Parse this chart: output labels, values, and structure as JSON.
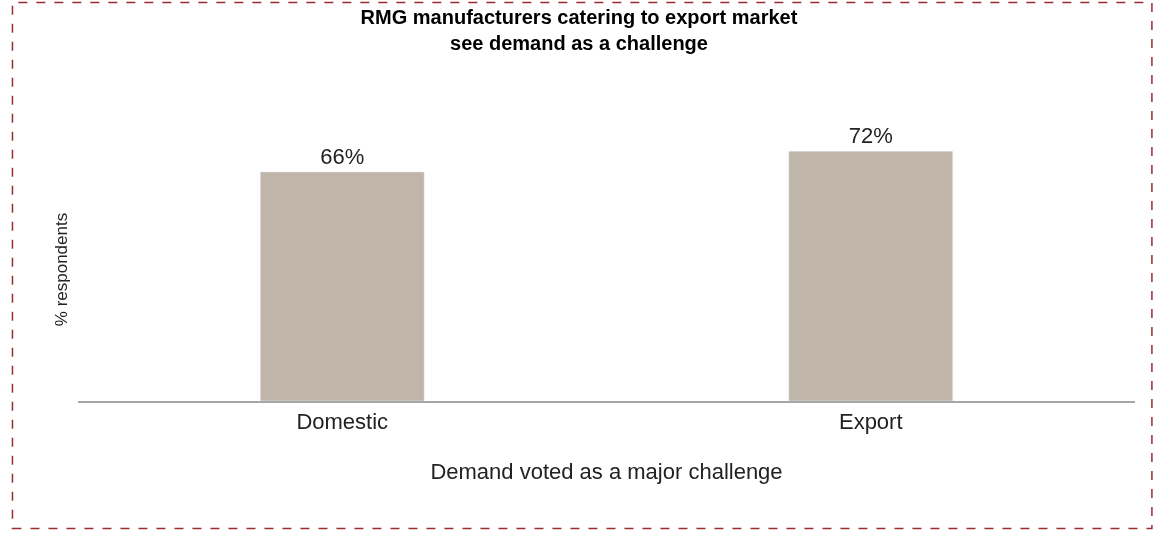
{
  "chart_data": {
    "type": "bar",
    "title": "RMG manufacturers catering to export market\nsee demand as a challenge",
    "xlabel": "Demand voted as a major challenge",
    "ylabel": "% respondents",
    "categories": [
      "Domestic",
      "Export"
    ],
    "values": [
      66,
      72
    ],
    "value_labels": [
      "66%",
      "72%"
    ],
    "color": "#bfb5a8",
    "tick_labels": "x",
    "legend": false
  }
}
